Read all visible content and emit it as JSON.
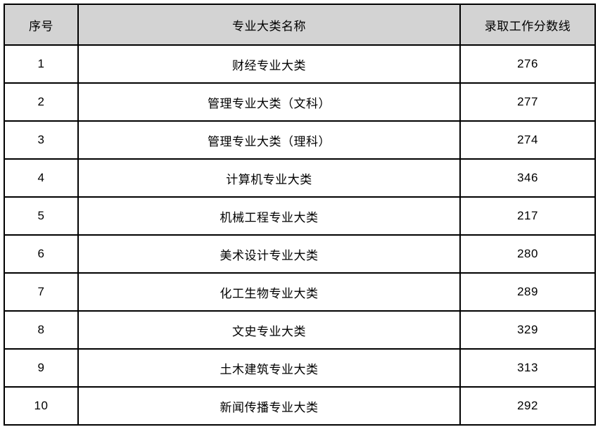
{
  "table": {
    "columns": [
      {
        "key": "index",
        "label": "序号"
      },
      {
        "key": "category_name",
        "label": "专业大类名称"
      },
      {
        "key": "score_line",
        "label": "录取工作分数线"
      }
    ],
    "rows": [
      {
        "index": "1",
        "category_name": "财经专业大类",
        "score_line": "276"
      },
      {
        "index": "2",
        "category_name": "管理专业大类（文科）",
        "score_line": "277"
      },
      {
        "index": "3",
        "category_name": "管理专业大类（理科）",
        "score_line": "274"
      },
      {
        "index": "4",
        "category_name": "计算机专业大类",
        "score_line": "346"
      },
      {
        "index": "5",
        "category_name": "机械工程专业大类",
        "score_line": "217"
      },
      {
        "index": "6",
        "category_name": "美术设计专业大类",
        "score_line": "280"
      },
      {
        "index": "7",
        "category_name": "化工生物专业大类",
        "score_line": "289"
      },
      {
        "index": "8",
        "category_name": "文史专业大类",
        "score_line": "329"
      },
      {
        "index": "9",
        "category_name": "土木建筑专业大类",
        "score_line": "313"
      },
      {
        "index": "10",
        "category_name": "新闻传播专业大类",
        "score_line": "292"
      }
    ],
    "style": {
      "header_bg": "#d3d3d3",
      "border_color": "#000000",
      "text_color": "#000000",
      "row_bg": "#ffffff"
    }
  }
}
